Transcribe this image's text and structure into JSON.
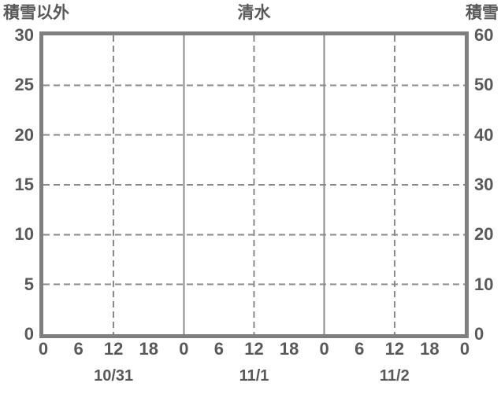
{
  "chart_data": {
    "type": "line",
    "title": "清水",
    "subtitle": "",
    "legend": null,
    "plot_empty": true,
    "series": [],
    "left_axis": {
      "label": "積雪以外",
      "min": 0,
      "max": 30,
      "ticks": [
        30,
        25,
        20,
        15,
        10,
        5,
        0
      ]
    },
    "right_axis": {
      "label": "積雪",
      "min": 0,
      "max": 60,
      "ticks": [
        60,
        50,
        40,
        30,
        20,
        10,
        0
      ]
    },
    "x_axis": {
      "span_hours": 72,
      "tick_interval_hours": 6,
      "tick_labels": [
        "0",
        "6",
        "12",
        "18",
        "0",
        "6",
        "12",
        "18",
        "0",
        "6",
        "12",
        "18",
        "0"
      ],
      "date_labels": [
        {
          "text": "10/31",
          "hour": 12
        },
        {
          "text": "11/1",
          "hour": 36
        },
        {
          "text": "11/2",
          "hour": 60
        }
      ]
    },
    "gridlines": {
      "horizontal_dashed_left_values": [
        25,
        20,
        15,
        10,
        5
      ],
      "vertical_dashed_hours": [
        12,
        36,
        60
      ],
      "vertical_solid_hours": [
        24,
        48
      ]
    }
  },
  "colors": {
    "frame": "#7f7f7f",
    "grid": "#8a8a8a",
    "text": "#595959",
    "background": "#ffffff"
  }
}
